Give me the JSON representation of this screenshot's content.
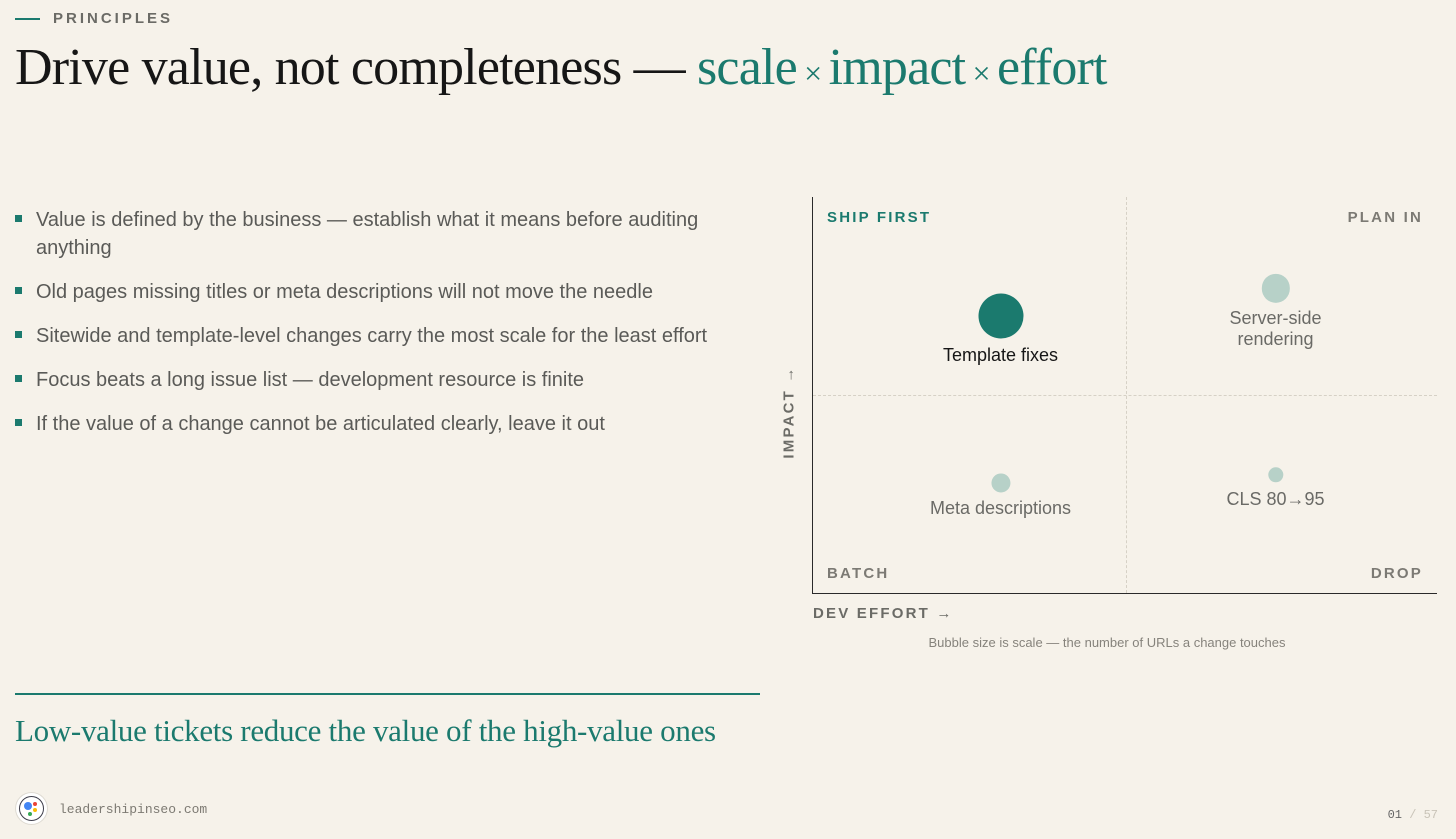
{
  "kicker": "PRINCIPLES",
  "headline": {
    "lead": "Drive value, not completeness — ",
    "scale": "scale",
    "times1": " × ",
    "impact": "impact",
    "times2": " × ",
    "effort": "effort"
  },
  "bullets": [
    "Value is defined by the business — establish what it means before auditing anything",
    "Old pages missing titles or meta descriptions will not move the needle",
    "Sitewide and template-level changes carry the most scale for the least effort",
    "Focus beats a long issue list — development resource is finite",
    "If the value of a change cannot be articulated clearly, leave it out"
  ],
  "tagline": "Low-value tickets reduce the value of the high-value ones",
  "footer": {
    "site": "leadershipinseo.com",
    "page_current": "01",
    "page_sep": "/",
    "page_total": "57"
  },
  "colors": {
    "accent": "#1b7a6e",
    "bubble_light": "#b7d1c8",
    "background": "#f6f2ea"
  },
  "chart_data": {
    "type": "scatter",
    "xlabel": "DEV EFFORT →",
    "ylabel": "IMPACT →",
    "xlim": [
      0,
      1
    ],
    "ylim": [
      0,
      1
    ],
    "quadrants": {
      "top_left": "SHIP FIRST",
      "top_right": "PLAN IN",
      "bottom_left": "BATCH",
      "bottom_right": "DROP"
    },
    "caption": "Bubble size is scale — the number of URLs a change touches",
    "points": [
      {
        "label": "Template fixes",
        "effort": 0.3,
        "impact": 0.7,
        "scale": 1.0,
        "highlight": true
      },
      {
        "label": "Server-side rendering",
        "effort": 0.74,
        "impact": 0.77,
        "scale": 0.55,
        "highlight": false
      },
      {
        "label": "Meta descriptions",
        "effort": 0.3,
        "impact": 0.28,
        "scale": 0.3,
        "highlight": false
      },
      {
        "label": "CLS 80→95",
        "effort": 0.74,
        "impact": 0.3,
        "scale": 0.2,
        "highlight": false
      }
    ]
  }
}
